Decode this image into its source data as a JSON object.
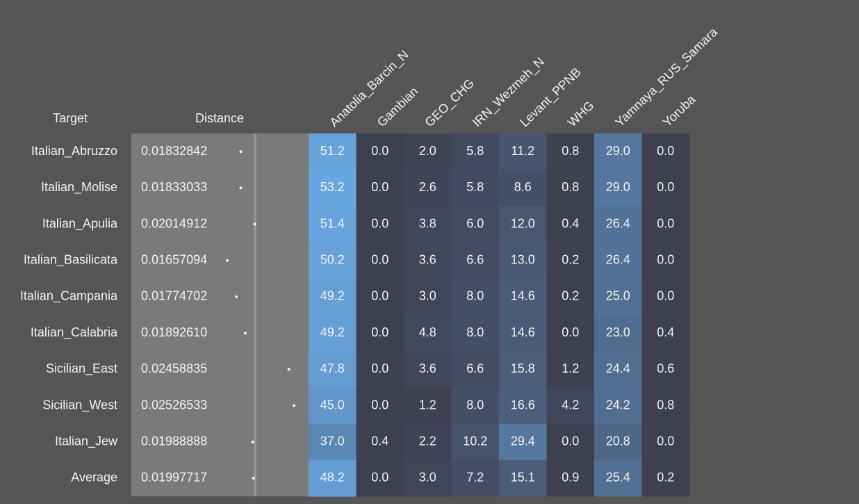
{
  "table": {
    "headers": [
      "Target",
      "Distance",
      "Anatolia_Barcin_N",
      "Gambian",
      "GEO_CHG",
      "IRN_Wezmeh_N",
      "Levant_PPNB",
      "WHG",
      "Yamnaya_RUS_Samara",
      "Yoruba"
    ],
    "rows": [
      [
        "Italian_Abruzzo",
        "0.01832842",
        "51.2",
        "0.0",
        "2.0",
        "5.8",
        "11.2",
        "0.8",
        "29.0",
        "0.0"
      ],
      [
        "Italian_Molise",
        "0.01833033",
        "53.2",
        "0.0",
        "2.6",
        "5.8",
        "8.6",
        "0.8",
        "29.0",
        "0.0"
      ],
      [
        "Italian_Apulia",
        "0.02014912",
        "51.4",
        "0.0",
        "3.8",
        "6.0",
        "12.0",
        "0.4",
        "26.4",
        "0.0"
      ],
      [
        "Italian_Basilicata",
        "0.01657094",
        "50.2",
        "0.0",
        "3.6",
        "6.6",
        "13.0",
        "0.2",
        "26.4",
        "0.0"
      ],
      [
        "Italian_Campania",
        "0.01774702",
        "49.2",
        "0.0",
        "3.0",
        "8.0",
        "14.6",
        "0.2",
        "25.0",
        "0.0"
      ],
      [
        "Italian_Calabria",
        "0.01892610",
        "49.2",
        "0.0",
        "4.8",
        "8.0",
        "14.6",
        "0.0",
        "23.0",
        "0.4"
      ],
      [
        "Sicilian_East",
        "0.02458835",
        "47.8",
        "0.0",
        "3.6",
        "6.6",
        "15.8",
        "1.2",
        "24.4",
        "0.6"
      ],
      [
        "Sicilian_West",
        "0.02526533",
        "45.0",
        "0.0",
        "1.2",
        "8.0",
        "16.6",
        "4.2",
        "24.2",
        "0.8"
      ],
      [
        "Italian_Jew",
        "0.01988888",
        "37.0",
        "0.4",
        "2.2",
        "10.2",
        "29.4",
        "0.0",
        "20.8",
        "0.0"
      ],
      [
        "Average",
        "0.01997717",
        "48.2",
        "0.0",
        "3.0",
        "7.2",
        "15.1",
        "0.9",
        "25.4",
        "0.2"
      ]
    ]
  }
}
